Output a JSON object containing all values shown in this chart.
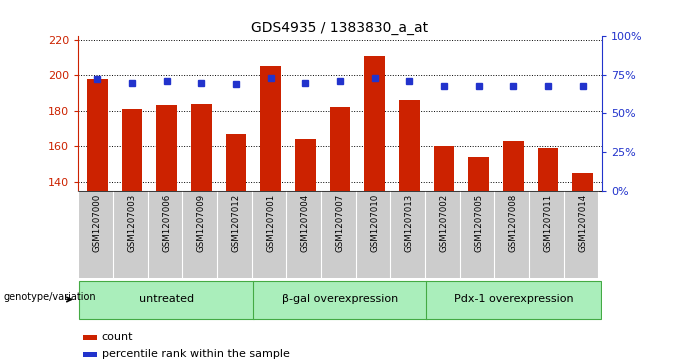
{
  "title": "GDS4935 / 1383830_a_at",
  "samples": [
    "GSM1207000",
    "GSM1207003",
    "GSM1207006",
    "GSM1207009",
    "GSM1207012",
    "GSM1207001",
    "GSM1207004",
    "GSM1207007",
    "GSM1207010",
    "GSM1207013",
    "GSM1207002",
    "GSM1207005",
    "GSM1207008",
    "GSM1207011",
    "GSM1207014"
  ],
  "counts": [
    198,
    181,
    183,
    184,
    167,
    205,
    164,
    182,
    211,
    186,
    160,
    154,
    163,
    159,
    145
  ],
  "percentiles": [
    72,
    70,
    71,
    70,
    69,
    73,
    70,
    71,
    73,
    71,
    68,
    68,
    68,
    68,
    68
  ],
  "groups": [
    {
      "label": "untreated",
      "start": 0,
      "end": 5
    },
    {
      "label": "β-gal overexpression",
      "start": 5,
      "end": 10
    },
    {
      "label": "Pdx-1 overexpression",
      "start": 10,
      "end": 15
    }
  ],
  "ylim_left": [
    135,
    222
  ],
  "ylim_right": [
    0,
    100
  ],
  "yticks_left": [
    140,
    160,
    180,
    200,
    220
  ],
  "yticks_right": [
    0,
    25,
    50,
    75,
    100
  ],
  "bar_color": "#cc2200",
  "dot_color": "#2233cc",
  "bg_color": "#cccccc",
  "group_bg_color": "#aaeebb",
  "plot_bg_color": "#ffffff",
  "grid_color": "#000000",
  "ylabel_left_color": "#cc2200",
  "ylabel_right_color": "#2233cc",
  "legend_items": [
    "count",
    "percentile rank within the sample"
  ],
  "genotype_label": "genotype/variation"
}
